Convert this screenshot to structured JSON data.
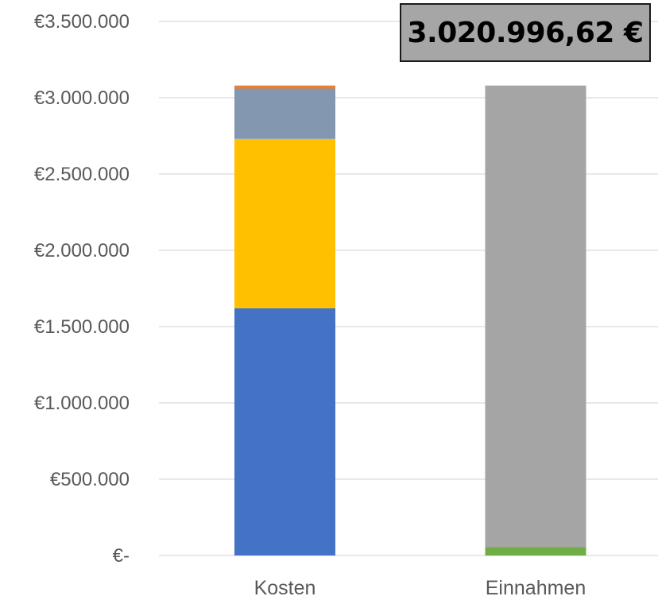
{
  "chart_data": {
    "type": "bar",
    "stacked": true,
    "title": "",
    "xlabel": "",
    "ylabel": "",
    "ylim": [
      0,
      3500000
    ],
    "y_ticks": [
      0,
      500000,
      1000000,
      1500000,
      2000000,
      2500000,
      3000000,
      3500000
    ],
    "y_tick_labels": [
      "€-",
      "€500.000",
      "€1.000.000",
      "€1.500.000",
      "€2.000.000",
      "€2.500.000",
      "€3.000.000",
      "€3.500.000"
    ],
    "grid": true,
    "legend": "none",
    "categories": [
      "Kosten",
      "Einnahmen"
    ],
    "series": [
      {
        "color": "#4472c4",
        "values": [
          1620000,
          0
        ]
      },
      {
        "color": "#ffc000",
        "values": [
          1110000,
          0
        ]
      },
      {
        "color": "#8497b0",
        "values": [
          330000,
          0
        ]
      },
      {
        "color": "#ed7d31",
        "values": [
          20000,
          0
        ]
      },
      {
        "color": "#70ad47",
        "values": [
          0,
          55000
        ]
      },
      {
        "color": "#a5a5a5",
        "values": [
          0,
          3025000
        ]
      }
    ],
    "annotation": {
      "text": "3.020.996,62 €",
      "position": "top-right"
    }
  }
}
